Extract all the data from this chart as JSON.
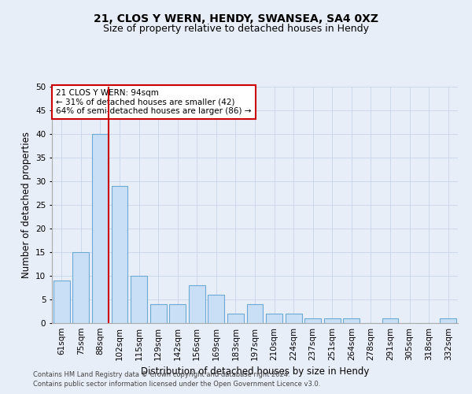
{
  "title": "21, CLOS Y WERN, HENDY, SWANSEA, SA4 0XZ",
  "subtitle": "Size of property relative to detached houses in Hendy",
  "xlabel": "Distribution of detached houses by size in Hendy",
  "ylabel": "Number of detached properties",
  "bar_labels": [
    "61sqm",
    "75sqm",
    "88sqm",
    "102sqm",
    "115sqm",
    "129sqm",
    "142sqm",
    "156sqm",
    "169sqm",
    "183sqm",
    "197sqm",
    "210sqm",
    "224sqm",
    "237sqm",
    "251sqm",
    "264sqm",
    "278sqm",
    "291sqm",
    "305sqm",
    "318sqm",
    "332sqm"
  ],
  "bar_values": [
    9,
    15,
    40,
    29,
    10,
    4,
    4,
    8,
    6,
    2,
    4,
    2,
    2,
    1,
    1,
    1,
    0,
    1,
    0,
    0,
    1
  ],
  "bar_color": "#c9dff5",
  "bar_edge_color": "#6aaad4",
  "property_line_color": "#cc0000",
  "annotation_text": "21 CLOS Y WERN: 94sqm\n← 31% of detached houses are smaller (42)\n64% of semi-detached houses are larger (86) →",
  "annotation_box_color": "#ffffff",
  "annotation_box_edge": "#cc0000",
  "ylim": [
    0,
    50
  ],
  "yticks": [
    0,
    5,
    10,
    15,
    20,
    25,
    30,
    35,
    40,
    45,
    50
  ],
  "grid_color": "#c8d4e8",
  "bg_color": "#e8eef8",
  "footer_line1": "Contains HM Land Registry data © Crown copyright and database right 2024.",
  "footer_line2": "Contains public sector information licensed under the Open Government Licence v3.0.",
  "title_fontsize": 10,
  "subtitle_fontsize": 9,
  "xlabel_fontsize": 8.5,
  "ylabel_fontsize": 8.5,
  "tick_fontsize": 7.5,
  "annotation_fontsize": 7.5,
  "footer_fontsize": 6
}
